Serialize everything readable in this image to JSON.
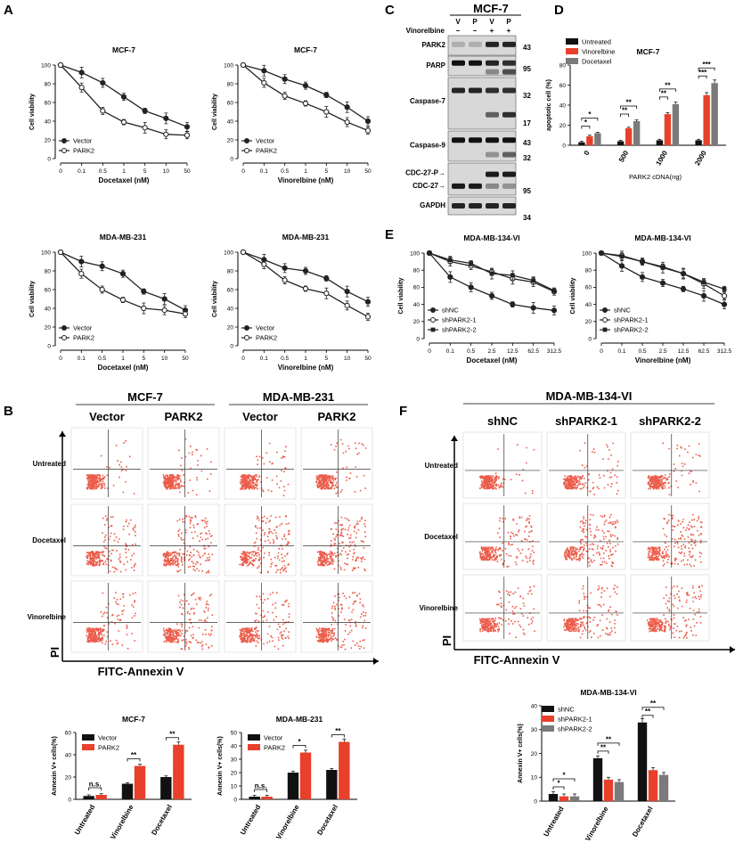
{
  "panel_labels": {
    "A": "A",
    "B": "B",
    "C": "C",
    "D": "D",
    "E": "E",
    "F": "F"
  },
  "viability_charts": [
    {
      "title": "MCF-7",
      "xlabel": "Docetaxel (nM)",
      "ylabel": "Cell viability",
      "categories": [
        "0",
        "0.1",
        "0.5",
        "1",
        "5",
        "10",
        "50"
      ],
      "ylim": [
        0,
        100
      ],
      "yticks": [
        "0",
        "20",
        "40",
        "60",
        "80",
        "100"
      ],
      "series": [
        {
          "name": "Vector",
          "values": [
            100,
            92,
            81,
            66,
            51,
            43,
            34
          ],
          "marker": "filled"
        },
        {
          "name": "PARK2",
          "values": [
            100,
            76,
            51,
            39,
            33,
            26,
            25
          ],
          "marker": "open"
        }
      ]
    },
    {
      "title": "MCF-7",
      "xlabel": "Vinorelbine (nM)",
      "ylabel": "Cell viability",
      "categories": [
        "0",
        "0.1",
        "0.5",
        "1",
        "5",
        "10",
        "50"
      ],
      "ylim": [
        0,
        100
      ],
      "yticks": [
        "0",
        "20",
        "40",
        "60",
        "80",
        "100"
      ],
      "series": [
        {
          "name": "Vector",
          "values": [
            100,
            94,
            85,
            78,
            68,
            55,
            40
          ],
          "marker": "filled"
        },
        {
          "name": "PARK2",
          "values": [
            100,
            81,
            67,
            59,
            50,
            39,
            30
          ],
          "marker": "open"
        }
      ]
    },
    {
      "title": "MDA-MB-231",
      "xlabel": "Docetaxel (nM)",
      "ylabel": "Cell viability",
      "categories": [
        "0",
        "0.1",
        "0.5",
        "1",
        "5",
        "10",
        "50"
      ],
      "ylim": [
        0,
        100
      ],
      "yticks": [
        "0",
        "20",
        "40",
        "60",
        "80",
        "100"
      ],
      "series": [
        {
          "name": "Vector",
          "values": [
            100,
            90,
            85,
            77,
            58,
            50,
            38
          ],
          "marker": "filled"
        },
        {
          "name": "PARK2",
          "values": [
            100,
            77,
            60,
            49,
            40,
            38,
            34
          ],
          "marker": "open"
        }
      ]
    },
    {
      "title": "MDA-MB-231",
      "xlabel": "Vinorelbine (nM)",
      "ylabel": "Cell viability",
      "categories": [
        "0",
        "0.1",
        "0.5",
        "1",
        "5",
        "10",
        "50"
      ],
      "ylim": [
        0,
        100
      ],
      "yticks": [
        "0",
        "20",
        "40",
        "60",
        "80",
        "100"
      ],
      "series": [
        {
          "name": "Vector",
          "values": [
            100,
            92,
            83,
            80,
            72,
            58,
            47
          ],
          "marker": "filled"
        },
        {
          "name": "PARK2",
          "values": [
            100,
            87,
            70,
            61,
            56,
            43,
            31
          ],
          "marker": "open"
        }
      ]
    },
    {
      "title": "MDA-MB-134-VI",
      "xlabel": "Docetaxel (nM)",
      "ylabel": "Cell viability",
      "categories": [
        "0",
        "0.1",
        "0.5",
        "2.5",
        "12.5",
        "62.5",
        "312.5"
      ],
      "ylim": [
        0,
        100
      ],
      "yticks": [
        "0",
        "20",
        "40",
        "60",
        "80",
        "100"
      ],
      "series": [
        {
          "name": "shNC",
          "values": [
            100,
            72,
            60,
            50,
            40,
            36,
            33
          ],
          "marker": "filled"
        },
        {
          "name": "shPARK2-1",
          "values": [
            100,
            90,
            85,
            78,
            70,
            66,
            55
          ],
          "marker": "open"
        },
        {
          "name": "shPARK2-2",
          "values": [
            100,
            92,
            88,
            76,
            74,
            68,
            56
          ],
          "marker": "square"
        }
      ]
    },
    {
      "title": "MDA-MB-134-VI",
      "xlabel": "Vinorelbine (nM)",
      "ylabel": "Cell viability",
      "categories": [
        "0",
        "0.1",
        "0.5",
        "2.5",
        "12.5",
        "62.5",
        "312.5"
      ],
      "ylim": [
        0,
        100
      ],
      "yticks": [
        "0",
        "20",
        "40",
        "60",
        "80",
        "100"
      ],
      "series": [
        {
          "name": "shNC",
          "values": [
            100,
            85,
            72,
            65,
            58,
            50,
            40
          ],
          "marker": "filled"
        },
        {
          "name": "shPARK2-1",
          "values": [
            100,
            97,
            90,
            84,
            76,
            64,
            50
          ],
          "marker": "open"
        },
        {
          "name": "shPARK2-2",
          "values": [
            100,
            96,
            90,
            83,
            76,
            66,
            58
          ],
          "marker": "square"
        }
      ]
    }
  ],
  "western": {
    "title": "MCF-7",
    "lanes": [
      "V",
      "P",
      "V",
      "P"
    ],
    "treatment_label": "Vinorelbine",
    "treatment": [
      "−",
      "−",
      "+",
      "+"
    ],
    "blots": [
      {
        "name": "PARK2",
        "mw": [
          "43"
        ]
      },
      {
        "name": "PARP",
        "mw": [
          "95"
        ]
      },
      {
        "name": "Caspase-7",
        "mw": [
          "32",
          "17"
        ]
      },
      {
        "name": "Caspase-9",
        "mw": [
          "43",
          "32"
        ]
      },
      {
        "name": "CDC-27",
        "mw": [
          "95"
        ],
        "labels": [
          "CDC-27-P→",
          "CDC-27→"
        ]
      },
      {
        "name": "GAPDH",
        "mw": [
          "34"
        ]
      }
    ]
  },
  "chart_data": [
    {
      "type": "bar",
      "title": "MCF-7",
      "ylabel": "apoptotic cell (%)",
      "xlabel": "PARK2 cDNA(ng)",
      "categories": [
        "0",
        "500",
        "1000",
        "2000"
      ],
      "ylim": [
        0,
        80
      ],
      "yticks": [
        "0",
        "20",
        "40",
        "60",
        "80"
      ],
      "series": [
        {
          "name": "Untreated",
          "color": "#111111",
          "values": [
            3,
            4,
            5,
            5
          ]
        },
        {
          "name": "Vinorelbine",
          "color": "#e8402a",
          "values": [
            9,
            17,
            31,
            50
          ]
        },
        {
          "name": "Docetaxel",
          "color": "#7a7a7a",
          "values": [
            12,
            24,
            41,
            62
          ]
        }
      ],
      "significance": [
        "*",
        "*",
        "**",
        "**",
        "**",
        "**",
        "***",
        "***"
      ]
    },
    {
      "type": "bar",
      "title": "MCF-7",
      "ylabel": "Annexin V+ cells(%)",
      "categories": [
        "Untreated",
        "Vinorelbine",
        "Docetaxel"
      ],
      "ylim": [
        0,
        60
      ],
      "yticks": [
        "0",
        "20",
        "40",
        "60"
      ],
      "series": [
        {
          "name": "Vector",
          "color": "#111111",
          "values": [
            3,
            14,
            20
          ]
        },
        {
          "name": "PARK2",
          "color": "#e8402a",
          "values": [
            4,
            30,
            49
          ]
        }
      ],
      "significance": [
        "n.s.",
        "**",
        "**"
      ]
    },
    {
      "type": "bar",
      "title": "MDA-MB-231",
      "ylabel": "Annexin V+ cells(%)",
      "categories": [
        "Untreated",
        "Vinorelbine",
        "Docetaxel"
      ],
      "ylim": [
        0,
        50
      ],
      "yticks": [
        "0",
        "10",
        "20",
        "30",
        "40",
        "50"
      ],
      "series": [
        {
          "name": "Vector",
          "color": "#111111",
          "values": [
            2,
            20,
            22
          ]
        },
        {
          "name": "PARK2",
          "color": "#e8402a",
          "values": [
            2,
            35,
            43
          ]
        }
      ],
      "significance": [
        "n.s.",
        "*",
        "**"
      ]
    },
    {
      "type": "bar",
      "title": "MDA-MB-134-VI",
      "ylabel": "Annexin V+ cells(%)",
      "categories": [
        "Untreated",
        "Vinorelbine",
        "Docetaxel"
      ],
      "ylim": [
        0,
        40
      ],
      "yticks": [
        "0",
        "10",
        "20",
        "30",
        "40"
      ],
      "series": [
        {
          "name": "shNC",
          "color": "#111111",
          "values": [
            3,
            18,
            33
          ]
        },
        {
          "name": "shPARK2-1",
          "color": "#e8402a",
          "values": [
            2,
            9,
            13
          ]
        },
        {
          "name": "shPARK2-2",
          "color": "#7a7a7a",
          "values": [
            2,
            8,
            11
          ]
        }
      ],
      "significance": [
        "*",
        "*",
        "**",
        "**",
        "**",
        "**"
      ]
    }
  ],
  "flow_B": {
    "groups": [
      "MCF-7",
      "MDA-MB-231"
    ],
    "columns": [
      "Vector",
      "PARK2",
      "Vector",
      "PARK2"
    ],
    "rows": [
      "Untreated",
      "Docetaxel",
      "Vinorelbine"
    ],
    "xlabel": "FITC-Annexin V",
    "ylabel": "PI"
  },
  "flow_F": {
    "group": "MDA-MB-134-VI",
    "columns": [
      "shNC",
      "shPARK2-1",
      "shPARK2-2"
    ],
    "rows": [
      "Untreated",
      "Docetaxel",
      "Vinorelbine"
    ],
    "xlabel": "FITC-Annexin V",
    "ylabel": "PI"
  }
}
